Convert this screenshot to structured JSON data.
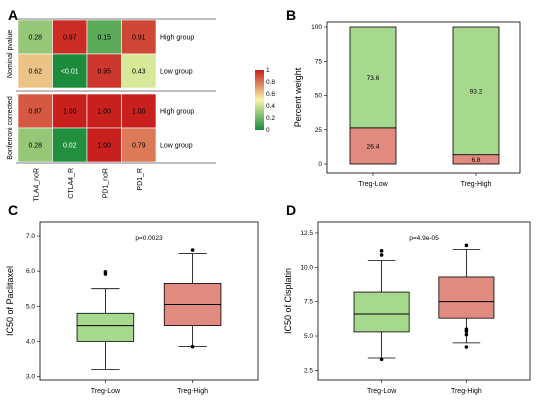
{
  "colors": {
    "low": "#1a8a3a",
    "mid": "#f7f7a8",
    "high": "#c8201e",
    "bar_low_segment": "#e08a80",
    "bar_high_segment": "#a6d98e",
    "box_low": "#a6d98e",
    "box_high": "#e08a80"
  },
  "chart_data": [
    {
      "panel": "A",
      "type": "heatmap",
      "columns": [
        "TLA4_noR",
        "CTLA4_R",
        "PD1_noR",
        "PD1_R"
      ],
      "row_groups": [
        {
          "name": "Nominal pvalue",
          "rows": [
            {
              "label": "High group",
              "values": [
                0.28,
                0.97,
                0.15,
                0.91
              ],
              "texts": [
                "0.28",
                "0.97",
                "0.15",
                "0.91"
              ]
            },
            {
              "label": "Low group",
              "values": [
                0.62,
                0.005,
                0.95,
                0.43
              ],
              "texts": [
                "0.62",
                "<0.01",
                "0.95",
                "0.43"
              ]
            }
          ]
        },
        {
          "name": "Bonferroni corrected",
          "rows": [
            {
              "label": "High group",
              "values": [
                0.87,
                1.0,
                1.0,
                1.0
              ],
              "texts": [
                "0.87",
                "1.00",
                "1.00",
                "1.00"
              ]
            },
            {
              "label": "Low group",
              "values": [
                0.28,
                0.02,
                1.0,
                0.79
              ],
              "texts": [
                "0.28",
                "0.02",
                "1.00",
                "0.79"
              ]
            }
          ]
        }
      ],
      "colorbar": {
        "ticks": [
          "1",
          "0.8",
          "0.6",
          "0.4",
          "0.2",
          "0"
        ],
        "range": [
          0,
          1
        ]
      }
    },
    {
      "panel": "B",
      "type": "bar",
      "stacked": true,
      "categories": [
        "Treg-Low",
        "Treg-High"
      ],
      "series": [
        {
          "values": [
            26.4,
            6.8
          ],
          "labels": [
            "26.4",
            "6.8"
          ]
        },
        {
          "values": [
            73.6,
            93.2
          ],
          "labels": [
            "73.6",
            "93.2"
          ]
        }
      ],
      "ylabel": "Percent weight",
      "ylim": [
        0,
        100
      ],
      "yticks": [
        "0",
        "25",
        "50",
        "75",
        "100"
      ]
    },
    {
      "panel": "C",
      "type": "box",
      "categories": [
        "Treg-Low",
        "Treg-High"
      ],
      "boxes": [
        {
          "min": 3.2,
          "q1": 4.0,
          "median": 4.45,
          "q3": 4.8,
          "max": 5.5,
          "outliers": [
            5.92,
            5.98
          ]
        },
        {
          "min": 3.85,
          "q1": 4.45,
          "median": 5.05,
          "q3": 5.65,
          "max": 6.5,
          "outliers": [
            3.85,
            6.6
          ]
        }
      ],
      "annotation": "p=0.0023",
      "ylabel": "IC50 of Paclitaxel",
      "ylim": [
        2.9,
        7.4
      ],
      "yticks": [
        3.0,
        4.0,
        5.0,
        6.0,
        7.0
      ],
      "ytick_labels": [
        "3.0",
        "4.0",
        "5.0",
        "6.0",
        "7.0"
      ]
    },
    {
      "panel": "D",
      "type": "box",
      "categories": [
        "Treg-Low",
        "Treg-High"
      ],
      "boxes": [
        {
          "min": 3.4,
          "q1": 5.3,
          "median": 6.6,
          "q3": 8.2,
          "max": 10.5,
          "outliers": [
            3.3,
            10.9,
            11.2
          ]
        },
        {
          "min": 4.5,
          "q1": 6.3,
          "median": 7.5,
          "q3": 9.3,
          "max": 11.3,
          "outliers": [
            4.2,
            5.1,
            5.35,
            5.5,
            11.6
          ]
        }
      ],
      "annotation": "p=4.9e-05",
      "ylabel": "IC50 of Cisplatin",
      "ylim": [
        1.8,
        13.3
      ],
      "yticks": [
        2.5,
        5.0,
        7.5,
        10.0,
        12.5
      ],
      "ytick_labels": [
        "2.5",
        "5.0",
        "7.5",
        "10.0",
        "12.5"
      ]
    }
  ]
}
